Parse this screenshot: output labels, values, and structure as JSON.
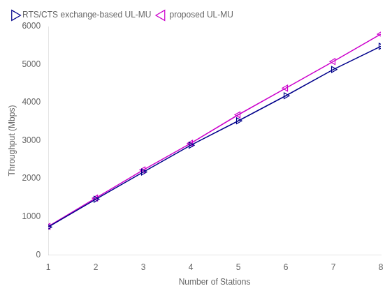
{
  "chart_data": {
    "type": "line",
    "x": [
      1,
      2,
      3,
      4,
      5,
      6,
      7,
      8
    ],
    "series": [
      {
        "name": "RTS/CTS exchange-based UL-MU",
        "color": "#00008B",
        "marker": "triangle-right",
        "values": [
          730,
          1460,
          2175,
          2880,
          3520,
          4180,
          4870,
          5480
        ]
      },
      {
        "name": "proposed UL-MU",
        "color": "#CC00CC",
        "marker": "triangle-left",
        "values": [
          745,
          1490,
          2230,
          2930,
          3680,
          4380,
          5080,
          5800
        ]
      }
    ],
    "xlabel": "Number of Stations",
    "ylabel": "Throughput (Mbps)",
    "xlim": [
      1,
      8
    ],
    "xticks": [
      1,
      2,
      3,
      4,
      5,
      6,
      7,
      8
    ],
    "ylim": [
      0,
      6000
    ],
    "yticks": [
      0,
      1000,
      2000,
      3000,
      4000,
      5000,
      6000
    ],
    "grid": false,
    "legend": "upper left"
  }
}
